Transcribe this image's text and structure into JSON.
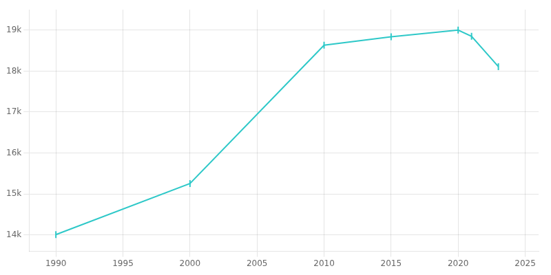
{
  "chart_data": {
    "type": "line",
    "x": [
      1990,
      2000,
      2010,
      2015,
      2020,
      2021,
      2023
    ],
    "values": [
      14009,
      15256,
      18631,
      18839,
      19000,
      18850,
      18109
    ],
    "color": "#2ec8c8",
    "marker": "vline",
    "xlim": [
      1988,
      2026
    ],
    "ylim": [
      13600,
      19500
    ],
    "xticks": [
      1990,
      1995,
      2000,
      2005,
      2010,
      2015,
      2020,
      2025
    ],
    "yticks": [
      {
        "value": 14000,
        "label": "14k"
      },
      {
        "value": 15000,
        "label": "15k"
      },
      {
        "value": 16000,
        "label": "16k"
      },
      {
        "value": 17000,
        "label": "17k"
      },
      {
        "value": 18000,
        "label": "18k"
      },
      {
        "value": 19000,
        "label": "19k"
      }
    ],
    "grid": true
  }
}
